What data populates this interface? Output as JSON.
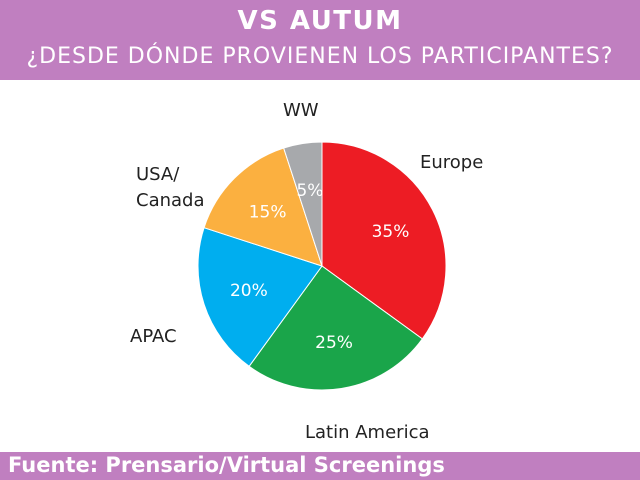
{
  "header": {
    "title": "VS  AUTUM",
    "subtitle": "¿DESDE DÓNDE PROVIENEN LOS PARTICIPANTES?"
  },
  "footer": {
    "source": "Fuente: Prensario/Virtual Screenings"
  },
  "chart_data": {
    "type": "pie",
    "categories": [
      "Europe",
      "Latin America",
      "APAC",
      "USA/Canada",
      "WW"
    ],
    "values": [
      35,
      25,
      20,
      15,
      5
    ],
    "value_labels": [
      "35%",
      "25%",
      "20%",
      "15%",
      "5%"
    ],
    "colors": [
      "#ed1c24",
      "#1aa54a",
      "#00aeef",
      "#fbb040",
      "#a7a9ac"
    ],
    "start": "12 o'clock, clockwise",
    "labels_outside": true
  }
}
